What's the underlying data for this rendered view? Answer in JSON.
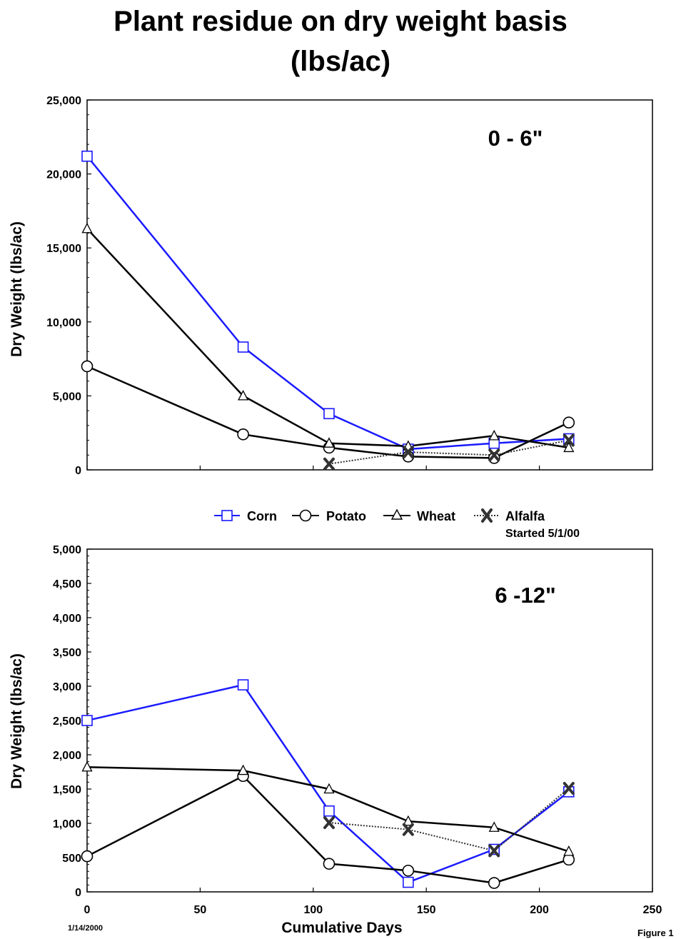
{
  "title_line1": "Plant residue on dry weight basis",
  "title_line2": "(lbs/ac)",
  "xlabel": "Cumulative Days",
  "start_date": "1/14/2000",
  "figure_label": "Figure 1",
  "legend": {
    "items": [
      "Corn",
      "Potato",
      "Wheat",
      "Alfalfa"
    ],
    "note": "Started 5/1/00"
  },
  "colors": {
    "Corn": "#1a1aff",
    "Potato": "#000000",
    "Wheat": "#000000",
    "Alfalfa": "#333333"
  },
  "chart_data": [
    {
      "type": "line",
      "panel_label": "0 - 6\"",
      "ylabel": "Dry Weight (lbs/ac)",
      "xlim": [
        0,
        250
      ],
      "ylim": [
        0,
        25000
      ],
      "xticks": [
        0,
        50,
        100,
        150,
        200,
        250
      ],
      "xtick_labels_shown": false,
      "yticks": [
        0,
        5000,
        10000,
        15000,
        20000,
        25000
      ],
      "ytick_labels": [
        "0",
        "5,000",
        "10,000",
        "15,000",
        "20,000",
        "25,000"
      ],
      "series": [
        {
          "name": "Corn",
          "marker": "square",
          "x": [
            0,
            69,
            107,
            142,
            180,
            213
          ],
          "y": [
            21200,
            8300,
            3800,
            1400,
            1800,
            2100
          ]
        },
        {
          "name": "Potato",
          "marker": "circle",
          "x": [
            0,
            69,
            107,
            142,
            180,
            213
          ],
          "y": [
            7000,
            2400,
            1500,
            900,
            800,
            3200
          ]
        },
        {
          "name": "Wheat",
          "marker": "triangle",
          "x": [
            0,
            69,
            107,
            142,
            180,
            213
          ],
          "y": [
            16300,
            5000,
            1800,
            1600,
            2300,
            1500
          ]
        },
        {
          "name": "Alfalfa",
          "marker": "x",
          "x": [
            107,
            142,
            180,
            213
          ],
          "y": [
            400,
            1200,
            1000,
            2000
          ]
        }
      ]
    },
    {
      "type": "line",
      "panel_label": "6 -12\"",
      "ylabel": "Dry Weight (lbs/ac)",
      "xlim": [
        0,
        250
      ],
      "ylim": [
        0,
        5000
      ],
      "xticks": [
        0,
        50,
        100,
        150,
        200,
        250
      ],
      "xtick_labels": [
        "0",
        "50",
        "100",
        "150",
        "200",
        "250"
      ],
      "yticks": [
        0,
        500,
        1000,
        1500,
        2000,
        2500,
        3000,
        3500,
        4000,
        4500,
        5000
      ],
      "ytick_labels": [
        "0",
        "500",
        "1,000",
        "1,500",
        "2,000",
        "2,500",
        "3,000",
        "3,500",
        "4,000",
        "4,500",
        "5,000"
      ],
      "series": [
        {
          "name": "Corn",
          "marker": "square",
          "x": [
            0,
            69,
            107,
            142,
            180,
            213
          ],
          "y": [
            2500,
            3020,
            1180,
            140,
            620,
            1460
          ]
        },
        {
          "name": "Potato",
          "marker": "circle",
          "x": [
            0,
            69,
            107,
            142,
            180,
            213
          ],
          "y": [
            520,
            1690,
            410,
            310,
            130,
            470
          ]
        },
        {
          "name": "Wheat",
          "marker": "triangle",
          "x": [
            0,
            69,
            107,
            142,
            180,
            213
          ],
          "y": [
            1820,
            1770,
            1500,
            1030,
            940,
            590
          ]
        },
        {
          "name": "Alfalfa",
          "marker": "x",
          "x": [
            107,
            142,
            180,
            213
          ],
          "y": [
            1010,
            910,
            600,
            1510
          ]
        }
      ]
    }
  ]
}
